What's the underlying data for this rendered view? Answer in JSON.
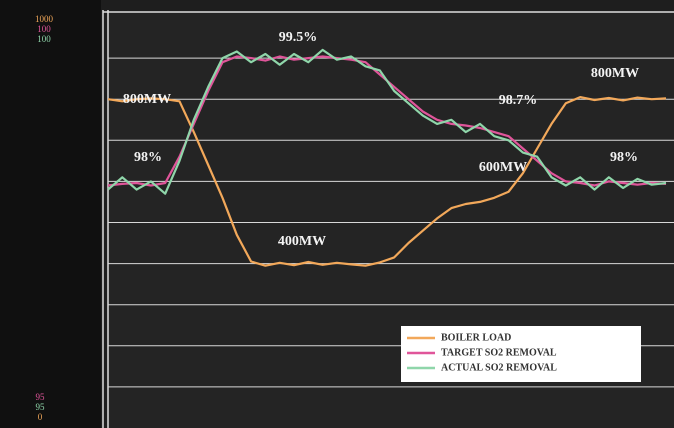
{
  "chart_data": {
    "type": "line",
    "ylim": [
      0,
      1000
    ],
    "y2lim": [
      95,
      100
    ],
    "yticks": [
      100,
      200,
      300,
      400,
      500,
      600,
      700,
      800,
      900
    ],
    "grid": true,
    "legend": "lower right",
    "annotations": [
      "800MW",
      "99.5%",
      "98%",
      "400MW",
      "98.7%",
      "600MW",
      "800MW",
      "98%"
    ],
    "series": [
      {
        "name": "BOILER LOAD",
        "color": "#f2a85a",
        "values": [
          800,
          795,
          800,
          802,
          800,
          795,
          720,
          640,
          560,
          470,
          405,
          395,
          402,
          396,
          404,
          397,
          402,
          398,
          395,
          403,
          415,
          450,
          480,
          510,
          535,
          545,
          550,
          560,
          575,
          620,
          680,
          740,
          790,
          805,
          798,
          803,
          797,
          804,
          800,
          802
        ]
      },
      {
        "name": "TARGET SO2 REMOVAL",
        "color": "#e0559a",
        "axis": "y2",
        "values": [
          97.95,
          97.97,
          97.98,
          97.95,
          97.98,
          98.3,
          98.7,
          99.1,
          99.45,
          99.52,
          99.5,
          99.47,
          99.52,
          99.48,
          99.5,
          99.52,
          99.5,
          99.48,
          99.45,
          99.3,
          99.15,
          99.0,
          98.85,
          98.75,
          98.7,
          98.68,
          98.65,
          98.6,
          98.55,
          98.4,
          98.25,
          98.1,
          98.0,
          97.98,
          97.95,
          98.0,
          97.98,
          97.96,
          97.98,
          97.97
        ]
      },
      {
        "name": "ACTUAL SO2 REMOVAL",
        "color": "#8fd6aa",
        "axis": "y2",
        "values": [
          97.9,
          98.05,
          97.9,
          98.0,
          97.85,
          98.25,
          98.75,
          99.15,
          99.5,
          99.58,
          99.45,
          99.55,
          99.42,
          99.55,
          99.45,
          99.6,
          99.48,
          99.52,
          99.4,
          99.35,
          99.1,
          98.95,
          98.8,
          98.7,
          98.75,
          98.6,
          98.7,
          98.55,
          98.5,
          98.35,
          98.3,
          98.05,
          97.95,
          98.05,
          97.9,
          98.05,
          97.92,
          98.03,
          97.96,
          97.98
        ]
      }
    ]
  }
}
